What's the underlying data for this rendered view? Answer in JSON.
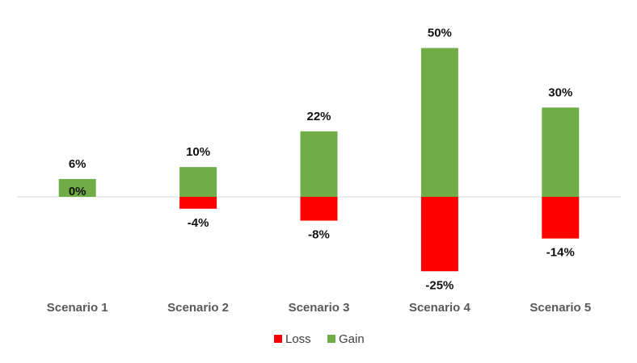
{
  "chart_data": {
    "type": "bar",
    "categories": [
      "Scenario 1",
      "Scenario 2",
      "Scenario 3",
      "Scenario 4",
      "Scenario 5"
    ],
    "series": [
      {
        "name": "Loss",
        "values": [
          0,
          -4,
          -8,
          -25,
          -14
        ],
        "labels": [
          "0%",
          "-4%",
          "-8%",
          "-25%",
          "-14%"
        ],
        "color": "#ff0000"
      },
      {
        "name": "Gain",
        "values": [
          6,
          10,
          22,
          50,
          30
        ],
        "labels": [
          "6%",
          "10%",
          "22%",
          "50%",
          "30%"
        ],
        "color": "#70ad47"
      }
    ],
    "stacked": true,
    "title": "",
    "xlabel": "",
    "ylabel": "",
    "ylim": [
      -30,
      50
    ],
    "grid": false,
    "legend_position": "bottom",
    "axis_color": "#d9d9d9"
  }
}
